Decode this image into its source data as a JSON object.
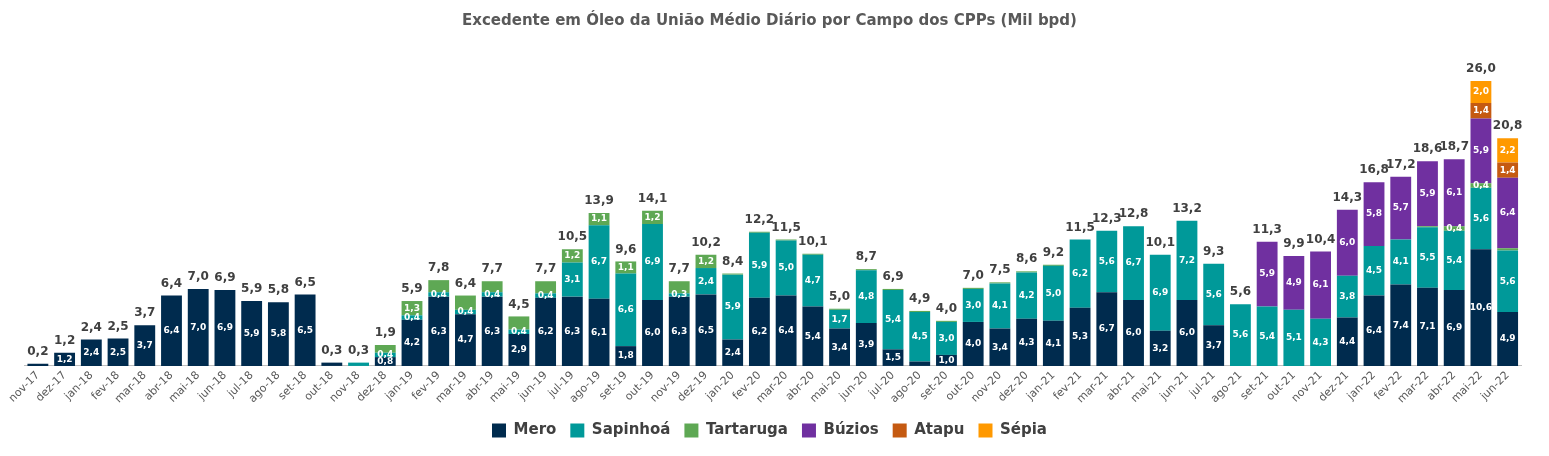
{
  "chart_data": {
    "type": "bar",
    "title": "Excedente em Óleo da União Médio Diário por Campo dos CPPs (Mil bpd)",
    "stacked": true,
    "legend": "bottom",
    "grid": false,
    "tick_labels": "x",
    "categories": [
      "nov-17",
      "dez-17",
      "jan-18",
      "fev-18",
      "mar-18",
      "abr-18",
      "mai-18",
      "jun-18",
      "jul-18",
      "ago-18",
      "set-18",
      "out-18",
      "nov-18",
      "dez-18",
      "jan-19",
      "fev-19",
      "mar-19",
      "abr-19",
      "mai-19",
      "jun-19",
      "jul-19",
      "ago-19",
      "set-19",
      "out-19",
      "nov-19",
      "dez-19",
      "jan-20",
      "fev-20",
      "mar-20",
      "abr-20",
      "mai-20",
      "jun-20",
      "jul-20",
      "ago-20",
      "set-20",
      "out-20",
      "nov-20",
      "dez-20",
      "jan-21",
      "fev-21",
      "mar-21",
      "abr-21",
      "mai-21",
      "jun-21",
      "jul-21",
      "ago-21",
      "set-21",
      "out-21",
      "nov-21",
      "dez-21",
      "jan-22",
      "fev-22",
      "mar-22",
      "abr-22",
      "mai-22",
      "jun-22"
    ],
    "series": [
      {
        "name": "Mero",
        "color": "#002b4e",
        "values": [
          0.2,
          1.2,
          2.4,
          2.5,
          3.7,
          6.4,
          7.0,
          6.9,
          5.9,
          5.8,
          6.5,
          0.3,
          0,
          0.8,
          4.2,
          6.3,
          4.7,
          6.3,
          2.9,
          6.2,
          6.3,
          6.1,
          1.8,
          6.0,
          6.3,
          6.5,
          2.4,
          6.2,
          6.4,
          5.4,
          3.4,
          3.9,
          1.5,
          0.4,
          1.0,
          4.0,
          3.4,
          4.3,
          4.1,
          5.3,
          6.7,
          6.0,
          3.2,
          6.0,
          3.7,
          0,
          0,
          0,
          0,
          4.4,
          6.4,
          7.4,
          7.1,
          6.9,
          10.6,
          4.9
        ],
        "value_labels": [
          null,
          "1,2",
          "2,4",
          "2,5",
          "3,7",
          "6,4",
          "7,0",
          "6,9",
          "5,9",
          "5,8",
          "6,5",
          null,
          null,
          "0,8",
          "4,2",
          "6,3",
          "4,7",
          "6,3",
          "2,9",
          "6,2",
          "6,3",
          "6,1",
          "1,8",
          "6,0",
          "6,3",
          "6,5",
          "2,4",
          "6,2",
          "6,4",
          "5,4",
          "3,4",
          "3,9",
          "1,5",
          null,
          "1,0",
          "4,0",
          "3,4",
          "4,3",
          "4,1",
          "5,3",
          "6,7",
          "6,0",
          "3,2",
          "6,0",
          "3,7",
          null,
          null,
          null,
          null,
          "4,4",
          "6,4",
          "7,4",
          "7,1",
          "6,9",
          "10,6",
          "4,9"
        ]
      },
      {
        "name": "Sapinhoá",
        "color": "#009999",
        "values": [
          0,
          0,
          0,
          0,
          0,
          0,
          0,
          0,
          0,
          0,
          0,
          0,
          0.3,
          0.4,
          0.4,
          0.4,
          0.4,
          0.4,
          0.4,
          0.4,
          3.1,
          6.7,
          6.6,
          6.9,
          0.3,
          2.4,
          5.9,
          5.9,
          5.0,
          4.7,
          1.7,
          4.8,
          5.4,
          4.5,
          3.0,
          3.0,
          4.1,
          4.2,
          5.0,
          6.2,
          5.6,
          6.7,
          6.9,
          7.2,
          5.6,
          5.6,
          5.4,
          5.1,
          4.3,
          3.8,
          4.5,
          4.1,
          5.5,
          5.4,
          5.6,
          5.6
        ],
        "value_labels": [
          null,
          null,
          null,
          null,
          null,
          null,
          null,
          null,
          null,
          null,
          null,
          null,
          null,
          "0,4",
          "0,4",
          "0,4",
          "0,4",
          "0,4",
          "0,4",
          "0,4",
          "3,1",
          "6,7",
          "6,6",
          "6,9",
          "0,3",
          "2,4",
          "5,9",
          "5,9",
          "5,0",
          "4,7",
          "1,7",
          "4,8",
          "5,4",
          "4,5",
          "3,0",
          "3,0",
          "4,1",
          "4,2",
          "5,0",
          "6,2",
          "5,6",
          "6,7",
          "6,9",
          "7,2",
          "5,6",
          "5,6",
          "5,4",
          "5,1",
          "4,3",
          "3,8",
          "4,5",
          "4,1",
          "5,5",
          "5,4",
          "5,6",
          "5,6"
        ]
      },
      {
        "name": "Tartaruga",
        "color": "#5ea854",
        "values": [
          0,
          0,
          0,
          0,
          0,
          0,
          0,
          0,
          0,
          0,
          0,
          0,
          0,
          0.7,
          1.3,
          1.1,
          1.3,
          1.0,
          1.2,
          1.1,
          1.2,
          1.1,
          1.1,
          1.2,
          1.1,
          1.2,
          0.1,
          0.1,
          0.1,
          0.1,
          0.1,
          0.1,
          0.1,
          0.1,
          0.1,
          0.1,
          0.1,
          0.1,
          0.1,
          0,
          0,
          0,
          0,
          0,
          0,
          0,
          0,
          0,
          0,
          0,
          0,
          0,
          0.1,
          0.4,
          0.4,
          0.2
        ],
        "value_labels": [
          null,
          null,
          null,
          null,
          null,
          null,
          null,
          null,
          null,
          null,
          null,
          null,
          null,
          null,
          "1,3",
          null,
          null,
          null,
          null,
          null,
          "1,2",
          "1,1",
          "1,1",
          "1,2",
          null,
          "1,2",
          null,
          null,
          null,
          null,
          null,
          null,
          null,
          null,
          null,
          null,
          null,
          null,
          null,
          null,
          null,
          null,
          null,
          null,
          null,
          null,
          null,
          null,
          null,
          null,
          null,
          null,
          null,
          "0,4",
          "0,4",
          null
        ]
      },
      {
        "name": "Búzios",
        "color": "#7030a0",
        "values": [
          0,
          0,
          0,
          0,
          0,
          0,
          0,
          0,
          0,
          0,
          0,
          0,
          0,
          0,
          0,
          0,
          0,
          0,
          0,
          0,
          0,
          0,
          0,
          0,
          0,
          0,
          0,
          0,
          0,
          0,
          0,
          0,
          0,
          0,
          0,
          0,
          0,
          0,
          0,
          0,
          0,
          0,
          0,
          0,
          0,
          0,
          5.9,
          4.9,
          6.1,
          6.0,
          5.8,
          5.7,
          5.9,
          6.1,
          5.9,
          6.4
        ],
        "value_labels": [
          null,
          null,
          null,
          null,
          null,
          null,
          null,
          null,
          null,
          null,
          null,
          null,
          null,
          null,
          null,
          null,
          null,
          null,
          null,
          null,
          null,
          null,
          null,
          null,
          null,
          null,
          null,
          null,
          null,
          null,
          null,
          null,
          null,
          null,
          null,
          null,
          null,
          null,
          null,
          null,
          null,
          null,
          null,
          null,
          null,
          null,
          "5,9",
          "4,9",
          "6,1",
          "6,0",
          "5,8",
          "5,7",
          "5,9",
          "6,1",
          "5,9",
          "6,4"
        ]
      },
      {
        "name": "Atapu",
        "color": "#c55a11",
        "values": [
          0,
          0,
          0,
          0,
          0,
          0,
          0,
          0,
          0,
          0,
          0,
          0,
          0,
          0,
          0,
          0,
          0,
          0,
          0,
          0,
          0,
          0,
          0,
          0,
          0,
          0,
          0,
          0,
          0,
          0,
          0,
          0,
          0,
          0,
          0,
          0,
          0,
          0,
          0,
          0,
          0,
          0,
          0,
          0,
          0,
          0,
          0,
          0,
          0,
          0,
          0,
          0,
          0,
          0,
          1.4,
          1.4
        ],
        "value_labels": [
          null,
          null,
          null,
          null,
          null,
          null,
          null,
          null,
          null,
          null,
          null,
          null,
          null,
          null,
          null,
          null,
          null,
          null,
          null,
          null,
          null,
          null,
          null,
          null,
          null,
          null,
          null,
          null,
          null,
          null,
          null,
          null,
          null,
          null,
          null,
          null,
          null,
          null,
          null,
          null,
          null,
          null,
          null,
          null,
          null,
          null,
          null,
          null,
          null,
          null,
          null,
          null,
          null,
          null,
          "1,4",
          "1,4"
        ]
      },
      {
        "name": "Sépia",
        "color": "#ff9900",
        "values": [
          0,
          0,
          0,
          0,
          0,
          0,
          0,
          0,
          0,
          0,
          0,
          0,
          0,
          0,
          0,
          0,
          0,
          0,
          0,
          0,
          0,
          0,
          0,
          0,
          0,
          0,
          0,
          0,
          0,
          0,
          0,
          0,
          0,
          0,
          0,
          0,
          0,
          0,
          0,
          0,
          0,
          0,
          0,
          0,
          0,
          0,
          0,
          0,
          0,
          0,
          0,
          0,
          0,
          0,
          2.0,
          2.2
        ],
        "value_labels": [
          null,
          null,
          null,
          null,
          null,
          null,
          null,
          null,
          null,
          null,
          null,
          null,
          null,
          null,
          null,
          null,
          null,
          null,
          null,
          null,
          null,
          null,
          null,
          null,
          null,
          null,
          null,
          null,
          null,
          null,
          null,
          null,
          null,
          null,
          null,
          null,
          null,
          null,
          null,
          null,
          null,
          null,
          null,
          null,
          null,
          null,
          null,
          null,
          null,
          null,
          null,
          null,
          null,
          null,
          "2,0",
          "2,2"
        ]
      }
    ],
    "totals": [
      "0,2",
      "1,2",
      "2,4",
      "2,5",
      "3,7",
      "6,4",
      "7,0",
      "6,9",
      "5,9",
      "5,8",
      "6,5",
      "0,3",
      "0,3",
      "1,9",
      "5,9",
      "7,8",
      "6,4",
      "7,7",
      "4,5",
      "7,7",
      "10,5",
      "13,9",
      "9,6",
      "14,1",
      "7,7",
      "10,2",
      "8,4",
      "12,2",
      "11,5",
      "10,1",
      "5,0",
      "8,7",
      "6,9",
      "4,9",
      "4,0",
      "7,0",
      "7,5",
      "8,6",
      "9,2",
      "11,5",
      "12,3",
      "12,8",
      "10,1",
      "13,2",
      "9,3",
      "5,6",
      "11,3",
      "9,9",
      "10,4",
      "14,3",
      "16,8",
      "17,2",
      "18,6",
      "18,7",
      "26,0",
      "20,8"
    ]
  }
}
